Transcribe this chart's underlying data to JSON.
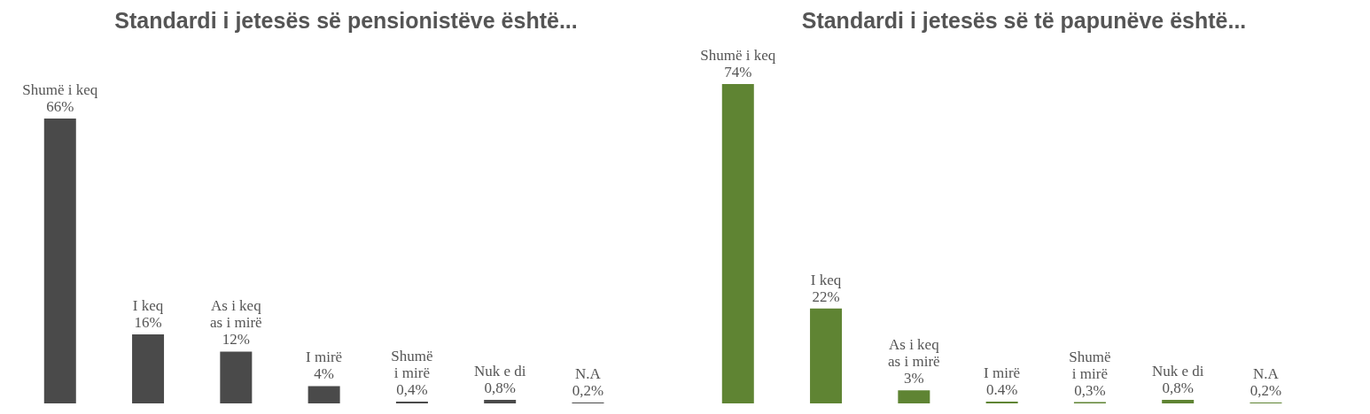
{
  "chart_data": [
    {
      "type": "bar",
      "title": "Standardi i jetesës së pensionistëve është...",
      "categories": [
        "Shumë i keq",
        "I keq",
        "As i keq as i mirë",
        "I mirë",
        "Shumë i mirë",
        "Nuk e di",
        "N.A"
      ],
      "values": [
        66,
        16,
        12,
        4,
        0.4,
        0.8,
        0.2
      ],
      "value_labels": [
        "66%",
        "16%",
        "12%",
        "4%",
        "0,4%",
        "0,8%",
        "0,2%"
      ],
      "color": "#4a4a4a"
    },
    {
      "type": "bar",
      "title": "Standardi i jetesës së të papunëve është...",
      "categories": [
        "Shumë i keq",
        "I keq",
        "As i keq as i mirë",
        "I mirë",
        "Shumë i mirë",
        "Nuk e di",
        "N.A"
      ],
      "values": [
        74,
        22,
        3,
        0.4,
        0.3,
        0.8,
        0.2
      ],
      "value_labels": [
        "74%",
        "22%",
        "3%",
        "0.4%",
        "0,3%",
        "0,8%",
        "0,2%"
      ],
      "color": "#5f8433"
    }
  ]
}
